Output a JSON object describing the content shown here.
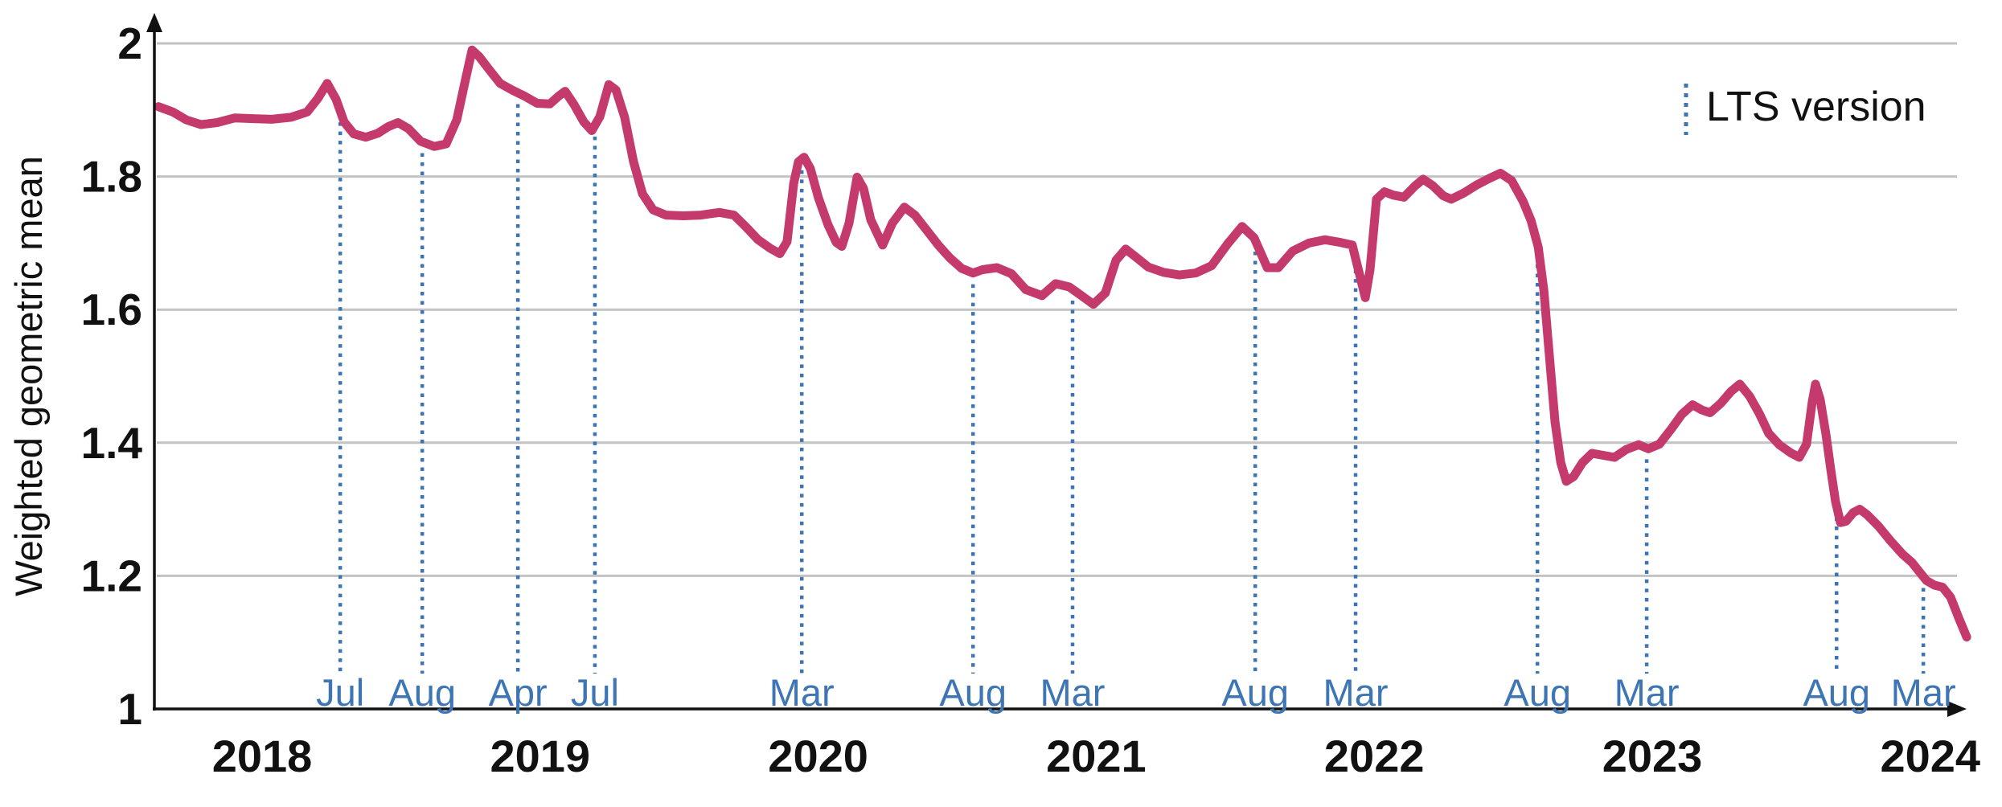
{
  "y_axis": {
    "title": "Weighted geometric mean",
    "tick_labels": [
      "2",
      "1.8",
      "1.6",
      "1.4",
      "1.2",
      "1"
    ],
    "ticks": [
      2,
      1.8,
      1.6,
      1.4,
      1.2,
      1
    ]
  },
  "x_axis": {
    "years": [
      "2018",
      "2019",
      "2020",
      "2021",
      "2022",
      "2023",
      "2024"
    ]
  },
  "legend": {
    "label": "LTS version"
  },
  "colors": {
    "line": "#c43a6d",
    "lts_marker": "#3d74b2",
    "lts_label": "#3e76b5",
    "grid": "#c3c3c3",
    "axis": "#111111"
  },
  "chart_data": {
    "type": "line",
    "ylabel": "Weighted geometric mean",
    "xlabel": "",
    "ylim": [
      1,
      2
    ],
    "xlim": [
      2017.6,
      2024.17
    ],
    "grid": "horizontal",
    "legend_position": "top-right",
    "legend_entries": [
      "LTS version"
    ],
    "lts_markers": [
      {
        "label": "Jul",
        "x": 2018.281
      },
      {
        "label": "Aug",
        "x": 2018.576
      },
      {
        "label": "Apr",
        "x": 2018.92
      },
      {
        "label": "Jul",
        "x": 2019.197
      },
      {
        "label": "Mar",
        "x": 2019.941
      },
      {
        "label": "Aug",
        "x": 2020.557
      },
      {
        "label": "Mar",
        "x": 2020.915
      },
      {
        "label": "Aug",
        "x": 2021.572
      },
      {
        "label": "Mar",
        "x": 2021.933
      },
      {
        "label": "Aug",
        "x": 2022.587
      },
      {
        "label": "Mar",
        "x": 2022.98
      },
      {
        "label": "Aug",
        "x": 2023.663
      },
      {
        "label": "Mar",
        "x": 2023.975
      }
    ],
    "series": [
      {
        "name": "Weighted geometric mean",
        "color": "#c43a6d",
        "points": [
          [
            2017.627,
            1.905
          ],
          [
            2017.679,
            1.897
          ],
          [
            2017.728,
            1.885
          ],
          [
            2017.78,
            1.878
          ],
          [
            2017.838,
            1.881
          ],
          [
            2017.902,
            1.888
          ],
          [
            2017.968,
            1.887
          ],
          [
            2018.035,
            1.886
          ],
          [
            2018.104,
            1.889
          ],
          [
            2018.162,
            1.897
          ],
          [
            2018.2,
            1.917
          ],
          [
            2018.234,
            1.94
          ],
          [
            2018.266,
            1.916
          ],
          [
            2018.295,
            1.882
          ],
          [
            2018.33,
            1.864
          ],
          [
            2018.373,
            1.859
          ],
          [
            2018.416,
            1.865
          ],
          [
            2018.454,
            1.875
          ],
          [
            2018.489,
            1.881
          ],
          [
            2018.526,
            1.872
          ],
          [
            2018.57,
            1.853
          ],
          [
            2018.619,
            1.845
          ],
          [
            2018.662,
            1.849
          ],
          [
            2018.7,
            1.885
          ],
          [
            2018.729,
            1.941
          ],
          [
            2018.755,
            1.99
          ],
          [
            2018.781,
            1.98
          ],
          [
            2018.816,
            1.961
          ],
          [
            2018.856,
            1.94
          ],
          [
            2018.899,
            1.93
          ],
          [
            2018.943,
            1.921
          ],
          [
            2018.989,
            1.91
          ],
          [
            2019.035,
            1.909
          ],
          [
            2019.067,
            1.921
          ],
          [
            2019.09,
            1.928
          ],
          [
            2019.122,
            1.908
          ],
          [
            2019.157,
            1.882
          ],
          [
            2019.186,
            1.869
          ],
          [
            2019.215,
            1.89
          ],
          [
            2019.247,
            1.938
          ],
          [
            2019.273,
            1.93
          ],
          [
            2019.304,
            1.889
          ],
          [
            2019.336,
            1.822
          ],
          [
            2019.368,
            1.774
          ],
          [
            2019.406,
            1.75
          ],
          [
            2019.452,
            1.742
          ],
          [
            2019.515,
            1.741
          ],
          [
            2019.579,
            1.742
          ],
          [
            2019.645,
            1.746
          ],
          [
            2019.697,
            1.742
          ],
          [
            2019.741,
            1.724
          ],
          [
            2019.784,
            1.705
          ],
          [
            2019.828,
            1.692
          ],
          [
            2019.862,
            1.684
          ],
          [
            2019.888,
            1.702
          ],
          [
            2019.912,
            1.79
          ],
          [
            2019.929,
            1.822
          ],
          [
            2019.949,
            1.829
          ],
          [
            2019.972,
            1.812
          ],
          [
            2020.001,
            1.768
          ],
          [
            2020.036,
            1.727
          ],
          [
            2020.065,
            1.701
          ],
          [
            2020.085,
            1.695
          ],
          [
            2020.111,
            1.73
          ],
          [
            2020.14,
            1.799
          ],
          [
            2020.163,
            1.782
          ],
          [
            2020.189,
            1.735
          ],
          [
            2020.232,
            1.697
          ],
          [
            2020.267,
            1.73
          ],
          [
            2020.31,
            1.754
          ],
          [
            2020.348,
            1.742
          ],
          [
            2020.389,
            1.72
          ],
          [
            2020.432,
            1.697
          ],
          [
            2020.475,
            1.677
          ],
          [
            2020.516,
            1.662
          ],
          [
            2020.557,
            1.655
          ],
          [
            2020.591,
            1.66
          ],
          [
            2020.643,
            1.663
          ],
          [
            2020.695,
            1.654
          ],
          [
            2020.747,
            1.63
          ],
          [
            2020.805,
            1.621
          ],
          [
            2020.854,
            1.639
          ],
          [
            2020.903,
            1.634
          ],
          [
            2020.944,
            1.622
          ],
          [
            2020.99,
            1.608
          ],
          [
            2021.033,
            1.625
          ],
          [
            2021.071,
            1.674
          ],
          [
            2021.106,
            1.691
          ],
          [
            2021.143,
            1.679
          ],
          [
            2021.187,
            1.664
          ],
          [
            2021.242,
            1.656
          ],
          [
            2021.299,
            1.652
          ],
          [
            2021.357,
            1.655
          ],
          [
            2021.415,
            1.666
          ],
          [
            2021.473,
            1.699
          ],
          [
            2021.525,
            1.725
          ],
          [
            2021.568,
            1.708
          ],
          [
            2021.615,
            1.663
          ],
          [
            2021.655,
            1.663
          ],
          [
            2021.707,
            1.688
          ],
          [
            2021.765,
            1.7
          ],
          [
            2021.823,
            1.705
          ],
          [
            2021.878,
            1.701
          ],
          [
            2021.921,
            1.697
          ],
          [
            2021.956,
            1.638
          ],
          [
            2021.968,
            1.618
          ],
          [
            2021.985,
            1.66
          ],
          [
            2022.008,
            1.766
          ],
          [
            2022.037,
            1.777
          ],
          [
            2022.069,
            1.772
          ],
          [
            2022.107,
            1.769
          ],
          [
            2022.147,
            1.786
          ],
          [
            2022.176,
            1.796
          ],
          [
            2022.211,
            1.786
          ],
          [
            2022.248,
            1.771
          ],
          [
            2022.277,
            1.766
          ],
          [
            2022.321,
            1.775
          ],
          [
            2022.367,
            1.787
          ],
          [
            2022.413,
            1.797
          ],
          [
            2022.454,
            1.805
          ],
          [
            2022.494,
            1.794
          ],
          [
            2022.535,
            1.763
          ],
          [
            2022.564,
            1.734
          ],
          [
            2022.59,
            1.694
          ],
          [
            2022.61,
            1.63
          ],
          [
            2022.63,
            1.53
          ],
          [
            2022.65,
            1.432
          ],
          [
            2022.671,
            1.37
          ],
          [
            2022.691,
            1.342
          ],
          [
            2022.717,
            1.349
          ],
          [
            2022.749,
            1.37
          ],
          [
            2022.783,
            1.384
          ],
          [
            2022.824,
            1.381
          ],
          [
            2022.864,
            1.378
          ],
          [
            2022.907,
            1.39
          ],
          [
            2022.951,
            1.397
          ],
          [
            2022.986,
            1.391
          ],
          [
            2023.026,
            1.398
          ],
          [
            2023.069,
            1.421
          ],
          [
            2023.107,
            1.443
          ],
          [
            2023.145,
            1.457
          ],
          [
            2023.179,
            1.449
          ],
          [
            2023.208,
            1.445
          ],
          [
            2023.246,
            1.459
          ],
          [
            2023.283,
            1.477
          ],
          [
            2023.315,
            1.488
          ],
          [
            2023.35,
            1.47
          ],
          [
            2023.385,
            1.444
          ],
          [
            2023.419,
            1.414
          ],
          [
            2023.457,
            1.397
          ],
          [
            2023.497,
            1.385
          ],
          [
            2023.529,
            1.378
          ],
          [
            2023.555,
            1.398
          ],
          [
            2023.575,
            1.46
          ],
          [
            2023.587,
            1.488
          ],
          [
            2023.604,
            1.465
          ],
          [
            2023.625,
            1.412
          ],
          [
            2023.642,
            1.36
          ],
          [
            2023.659,
            1.312
          ],
          [
            2023.677,
            1.28
          ],
          [
            2023.697,
            1.282
          ],
          [
            2023.723,
            1.295
          ],
          [
            2023.746,
            1.3
          ],
          [
            2023.772,
            1.292
          ],
          [
            2023.813,
            1.275
          ],
          [
            2023.856,
            1.253
          ],
          [
            2023.899,
            1.233
          ],
          [
            2023.934,
            1.22
          ],
          [
            2023.963,
            1.205
          ],
          [
            2023.986,
            1.193
          ],
          [
            2024.015,
            1.186
          ],
          [
            2024.044,
            1.183
          ],
          [
            2024.073,
            1.168
          ],
          [
            2024.102,
            1.137
          ],
          [
            2024.131,
            1.108
          ]
        ]
      }
    ]
  }
}
